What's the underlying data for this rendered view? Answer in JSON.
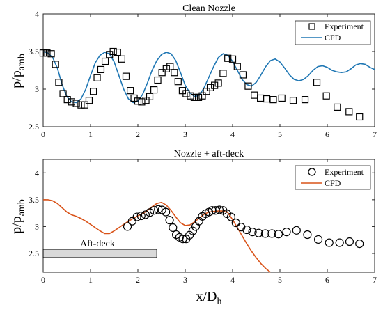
{
  "chart_data": [
    {
      "type": "line",
      "title": "Clean Nozzle",
      "xlabel": "",
      "ylabel_main": "p/p",
      "ylabel_sub": "amb",
      "xlim": [
        0,
        7
      ],
      "ylim": [
        2.5,
        4
      ],
      "xticks": [
        0,
        1,
        2,
        3,
        4,
        5,
        6,
        7
      ],
      "yticks": [
        2.5,
        3,
        3.5,
        4
      ],
      "ytick_labels": [
        "2.5",
        "3",
        "3.5",
        "4"
      ],
      "legend_position": "top-right",
      "grid": false,
      "series": [
        {
          "name": "Experiment",
          "kind": "scatter",
          "marker": "square",
          "color": "#000000",
          "x": [
            0.0,
            0.08,
            0.17,
            0.26,
            0.33,
            0.42,
            0.51,
            0.6,
            0.7,
            0.8,
            0.88,
            0.97,
            1.06,
            1.14,
            1.22,
            1.31,
            1.4,
            1.48,
            1.57,
            1.66,
            1.75,
            1.84,
            1.92,
            2.0,
            2.08,
            2.17,
            2.25,
            2.34,
            2.42,
            2.51,
            2.6,
            2.68,
            2.77,
            2.85,
            2.94,
            3.02,
            3.11,
            3.19,
            3.28,
            3.36,
            3.45,
            3.53,
            3.62,
            3.7,
            3.8,
            3.9,
            4.0,
            4.1,
            4.22,
            4.33,
            4.46,
            4.59,
            4.72,
            4.86,
            5.04,
            5.28,
            5.53,
            5.78,
            5.98,
            6.21,
            6.46,
            6.68
          ],
          "y": [
            3.48,
            3.48,
            3.47,
            3.33,
            3.09,
            2.94,
            2.86,
            2.83,
            2.81,
            2.79,
            2.79,
            2.85,
            2.97,
            3.15,
            3.26,
            3.37,
            3.46,
            3.5,
            3.49,
            3.4,
            3.17,
            2.98,
            2.88,
            2.84,
            2.83,
            2.85,
            2.9,
            2.99,
            3.12,
            3.22,
            3.27,
            3.3,
            3.22,
            3.1,
            2.98,
            2.94,
            2.91,
            2.89,
            2.89,
            2.91,
            2.97,
            3.02,
            3.05,
            3.08,
            3.21,
            3.41,
            3.4,
            3.3,
            3.19,
            3.04,
            2.92,
            2.88,
            2.87,
            2.86,
            2.88,
            2.85,
            2.86,
            3.09,
            2.91,
            2.76,
            2.7,
            2.63
          ]
        },
        {
          "name": "CFD",
          "kind": "line",
          "color": "#1f77b4",
          "x": [
            0.0,
            0.1,
            0.2,
            0.3,
            0.4,
            0.5,
            0.6,
            0.7,
            0.8,
            0.9,
            1.0,
            1.1,
            1.2,
            1.3,
            1.4,
            1.5,
            1.6,
            1.7,
            1.8,
            1.9,
            2.0,
            2.1,
            2.2,
            2.3,
            2.4,
            2.5,
            2.6,
            2.7,
            2.8,
            2.9,
            3.0,
            3.1,
            3.2,
            3.3,
            3.4,
            3.5,
            3.6,
            3.7,
            3.8,
            3.9,
            4.0,
            4.1,
            4.2,
            4.3,
            4.4,
            4.5,
            4.6,
            4.7,
            4.8,
            4.9,
            5.0,
            5.1,
            5.2,
            5.3,
            5.4,
            5.5,
            5.6,
            5.7,
            5.8,
            5.9,
            6.0,
            6.1,
            6.2,
            6.3,
            6.4,
            6.5,
            6.6,
            6.7,
            6.8,
            6.9,
            7.0
          ],
          "y": [
            3.5,
            3.48,
            3.42,
            3.28,
            3.06,
            2.9,
            2.83,
            2.82,
            2.87,
            3.0,
            3.18,
            3.35,
            3.45,
            3.49,
            3.47,
            3.36,
            3.18,
            3.0,
            2.87,
            2.82,
            2.84,
            2.93,
            3.08,
            3.25,
            3.38,
            3.46,
            3.49,
            3.47,
            3.38,
            3.22,
            3.05,
            2.95,
            2.9,
            2.92,
            3.02,
            3.16,
            3.3,
            3.42,
            3.47,
            3.45,
            3.37,
            3.25,
            3.13,
            3.06,
            3.04,
            3.09,
            3.19,
            3.3,
            3.38,
            3.4,
            3.36,
            3.28,
            3.19,
            3.13,
            3.11,
            3.13,
            3.18,
            3.25,
            3.3,
            3.31,
            3.29,
            3.25,
            3.23,
            3.22,
            3.23,
            3.27,
            3.32,
            3.34,
            3.33,
            3.29,
            3.26
          ]
        }
      ]
    },
    {
      "type": "line",
      "title": "Nozzle + aft-deck",
      "xlabel_main": "x/D",
      "xlabel_sub": "h",
      "ylabel_main": "p/p",
      "ylabel_sub": "amb",
      "xlim": [
        0,
        7
      ],
      "ylim": [
        2.15,
        4.25
      ],
      "xticks": [
        0,
        1,
        2,
        3,
        4,
        5,
        6,
        7
      ],
      "yticks": [
        2.5,
        3,
        3.5,
        4
      ],
      "ytick_labels": [
        "2.5",
        "3",
        "3.5",
        "4"
      ],
      "legend_position": "top-right",
      "grid": false,
      "annotation": {
        "label": "Aft-deck",
        "x_start": 0,
        "x_end": 2.4,
        "y_center": 2.5,
        "fill": "#d9d9d9"
      },
      "series": [
        {
          "name": "Experiment",
          "kind": "scatter",
          "marker": "circle",
          "color": "#000000",
          "x": [
            1.78,
            1.88,
            1.98,
            2.07,
            2.16,
            2.25,
            2.34,
            2.43,
            2.51,
            2.59,
            2.67,
            2.74,
            2.81,
            2.88,
            2.95,
            3.02,
            3.09,
            3.16,
            3.22,
            3.29,
            3.36,
            3.43,
            3.5,
            3.57,
            3.64,
            3.72,
            3.8,
            3.88,
            3.97,
            4.07,
            4.18,
            4.3,
            4.42,
            4.55,
            4.69,
            4.83,
            4.97,
            5.14,
            5.35,
            5.58,
            5.81,
            6.04,
            6.26,
            6.47,
            6.68
          ],
          "y": [
            3.0,
            3.1,
            3.18,
            3.2,
            3.22,
            3.26,
            3.3,
            3.32,
            3.31,
            3.27,
            3.12,
            2.98,
            2.85,
            2.8,
            2.77,
            2.77,
            2.84,
            2.92,
            3.0,
            3.1,
            3.19,
            3.24,
            3.27,
            3.3,
            3.3,
            3.31,
            3.3,
            3.24,
            3.18,
            3.07,
            2.99,
            2.94,
            2.9,
            2.88,
            2.87,
            2.87,
            2.86,
            2.9,
            2.93,
            2.85,
            2.76,
            2.7,
            2.7,
            2.72,
            2.68
          ]
        },
        {
          "name": "CFD",
          "kind": "line",
          "color": "#d95319",
          "x": [
            0.0,
            0.1,
            0.2,
            0.3,
            0.4,
            0.5,
            0.6,
            0.7,
            0.8,
            0.9,
            1.0,
            1.1,
            1.2,
            1.3,
            1.4,
            1.5,
            1.6,
            1.7,
            1.8,
            1.9,
            2.0,
            2.1,
            2.2,
            2.3,
            2.4,
            2.5,
            2.6,
            2.7,
            2.8,
            2.9,
            3.0,
            3.1,
            3.2,
            3.3,
            3.4,
            3.5,
            3.6,
            3.7,
            3.8,
            3.9,
            4.0,
            4.1,
            4.2,
            4.3,
            4.4,
            4.5,
            4.6,
            4.7,
            4.8
          ],
          "y": [
            3.5,
            3.5,
            3.48,
            3.43,
            3.35,
            3.27,
            3.22,
            3.19,
            3.15,
            3.1,
            3.04,
            2.98,
            2.92,
            2.87,
            2.87,
            2.92,
            2.98,
            3.04,
            3.1,
            3.15,
            3.2,
            3.24,
            3.3,
            3.37,
            3.43,
            3.45,
            3.4,
            3.3,
            3.18,
            3.07,
            3.02,
            3.03,
            3.09,
            3.16,
            3.23,
            3.27,
            3.28,
            3.29,
            3.29,
            3.26,
            3.13,
            2.98,
            2.83,
            2.68,
            2.54,
            2.42,
            2.31,
            2.22,
            2.15
          ]
        }
      ]
    }
  ]
}
